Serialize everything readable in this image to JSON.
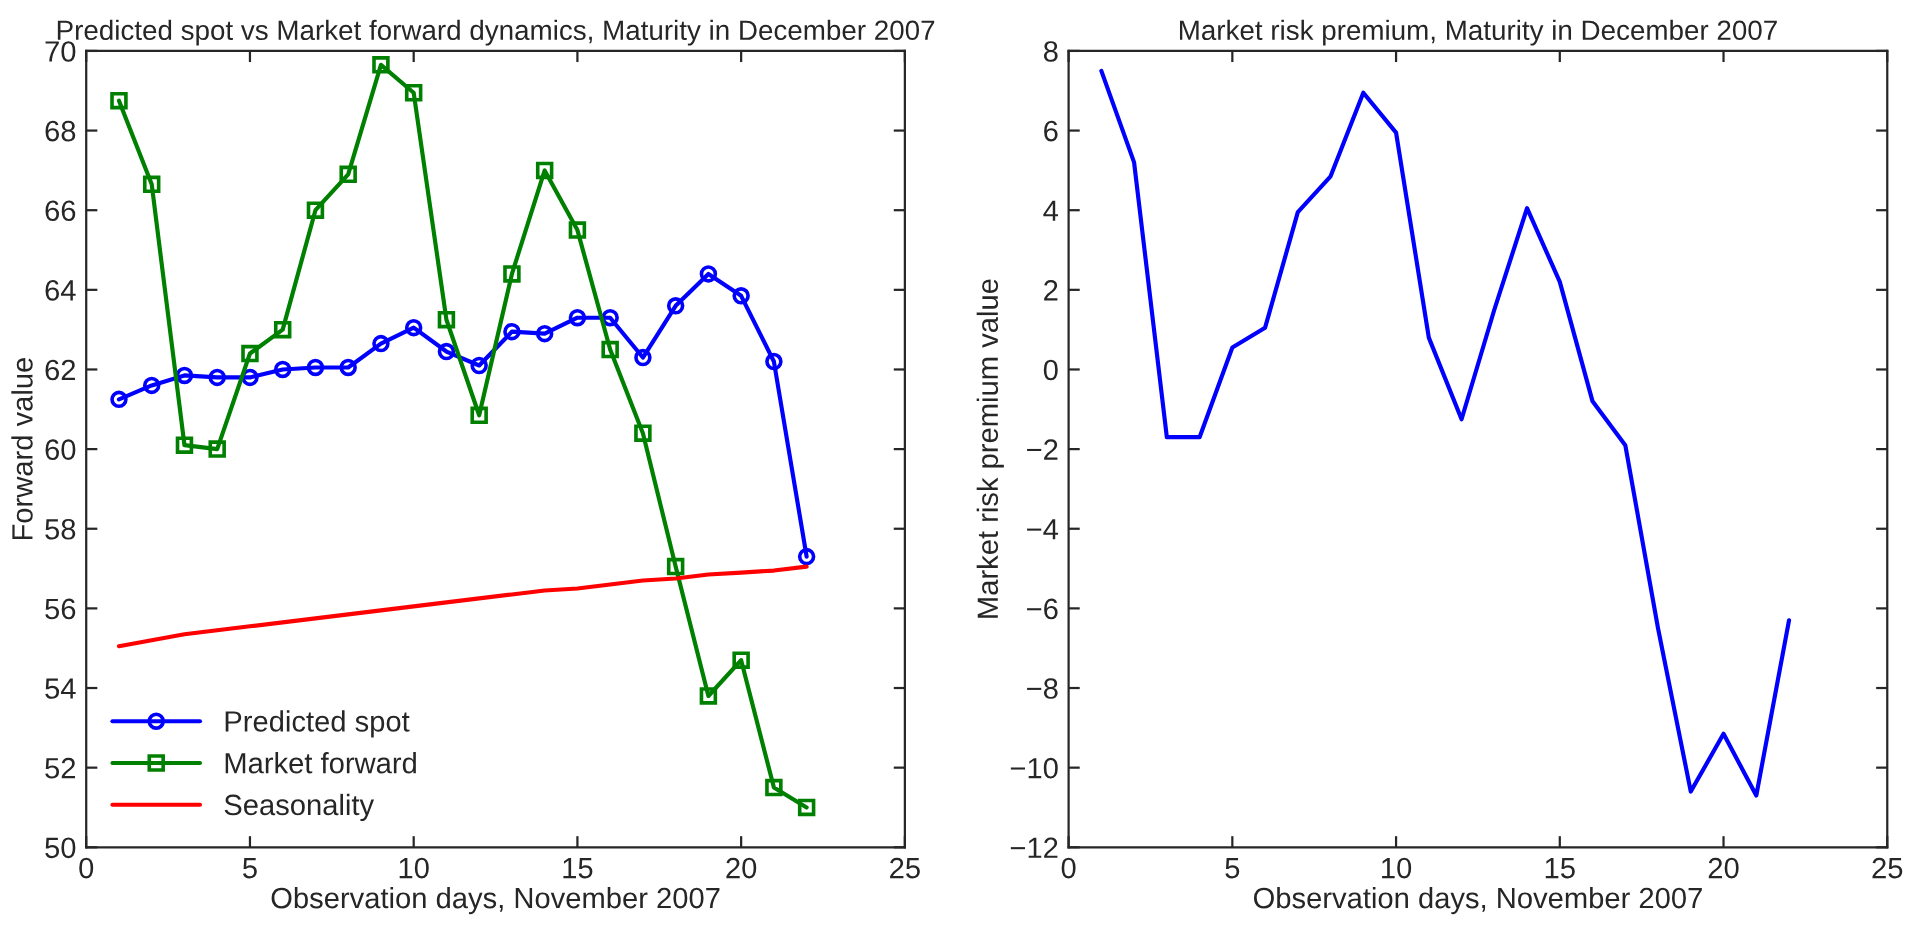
{
  "chart_data": [
    {
      "type": "line",
      "title": "Predicted spot vs Market forward dynamics, Maturity in December 2007",
      "xlabel": "Observation days, November 2007",
      "ylabel": "Forward value",
      "x": [
        1,
        2,
        3,
        4,
        5,
        6,
        7,
        8,
        9,
        10,
        11,
        12,
        13,
        14,
        15,
        16,
        17,
        18,
        19,
        20,
        21,
        22
      ],
      "series": [
        {
          "name": "Predicted spot",
          "color": "#0000ff",
          "marker": "circle",
          "values": [
            61.25,
            61.6,
            61.85,
            61.8,
            61.8,
            62.0,
            62.05,
            62.05,
            62.65,
            63.05,
            62.45,
            62.1,
            62.95,
            62.9,
            63.3,
            63.3,
            62.3,
            63.6,
            64.4,
            63.85,
            62.2,
            57.3
          ]
        },
        {
          "name": "Market forward",
          "color": "#008000",
          "marker": "square",
          "values": [
            68.75,
            66.65,
            60.1,
            60.0,
            62.4,
            63.0,
            66.0,
            66.9,
            69.65,
            68.95,
            63.25,
            60.85,
            64.4,
            67.0,
            65.5,
            62.5,
            60.4,
            57.05,
            53.8,
            54.7,
            51.5,
            51.0
          ]
        },
        {
          "name": "Seasonality",
          "color": "#ff0000",
          "marker": "none",
          "values": [
            55.05,
            55.2,
            55.35,
            55.45,
            55.55,
            55.65,
            55.75,
            55.85,
            55.95,
            56.05,
            56.15,
            56.25,
            56.35,
            56.45,
            56.5,
            56.6,
            56.7,
            56.75,
            56.85,
            56.9,
            56.95,
            57.05
          ]
        }
      ],
      "xlim": [
        0,
        25
      ],
      "xticks": [
        0,
        5,
        10,
        15,
        20,
        25
      ],
      "ylim": [
        50,
        70
      ],
      "yticks": [
        50,
        52,
        54,
        56,
        58,
        60,
        62,
        64,
        66,
        68,
        70
      ],
      "grid": false,
      "legend": "bottom left"
    },
    {
      "type": "line",
      "title": "Market risk premium, Maturity in December 2007",
      "xlabel": "Observation days, November 2007",
      "ylabel": "Market risk premium value",
      "x": [
        1,
        2,
        3,
        4,
        5,
        6,
        7,
        8,
        9,
        10,
        11,
        12,
        13,
        14,
        15,
        16,
        17,
        18,
        19,
        20,
        21,
        22
      ],
      "series": [
        {
          "color": "#0000ff",
          "values": [
            7.5,
            5.2,
            -1.7,
            -1.7,
            0.55,
            1.05,
            3.95,
            4.85,
            6.95,
            5.95,
            0.8,
            -1.25,
            1.5,
            4.05,
            2.2,
            -0.8,
            -1.9,
            -6.5,
            -10.6,
            -9.15,
            -10.7,
            -6.3
          ]
        }
      ],
      "xlim": [
        0,
        25
      ],
      "xticks": [
        0,
        5,
        10,
        15,
        20,
        25
      ],
      "ylim": [
        -12,
        8
      ],
      "yticks": [
        {
          "value": -12,
          "label": "−12"
        },
        {
          "value": -10,
          "label": "−10"
        },
        {
          "value": -8,
          "label": "−8"
        },
        {
          "value": -6,
          "label": "−6"
        },
        {
          "value": -4,
          "label": "−4"
        },
        {
          "value": -2,
          "label": "−2"
        },
        0,
        2,
        4,
        6,
        8
      ],
      "grid": false,
      "legend": false
    }
  ]
}
